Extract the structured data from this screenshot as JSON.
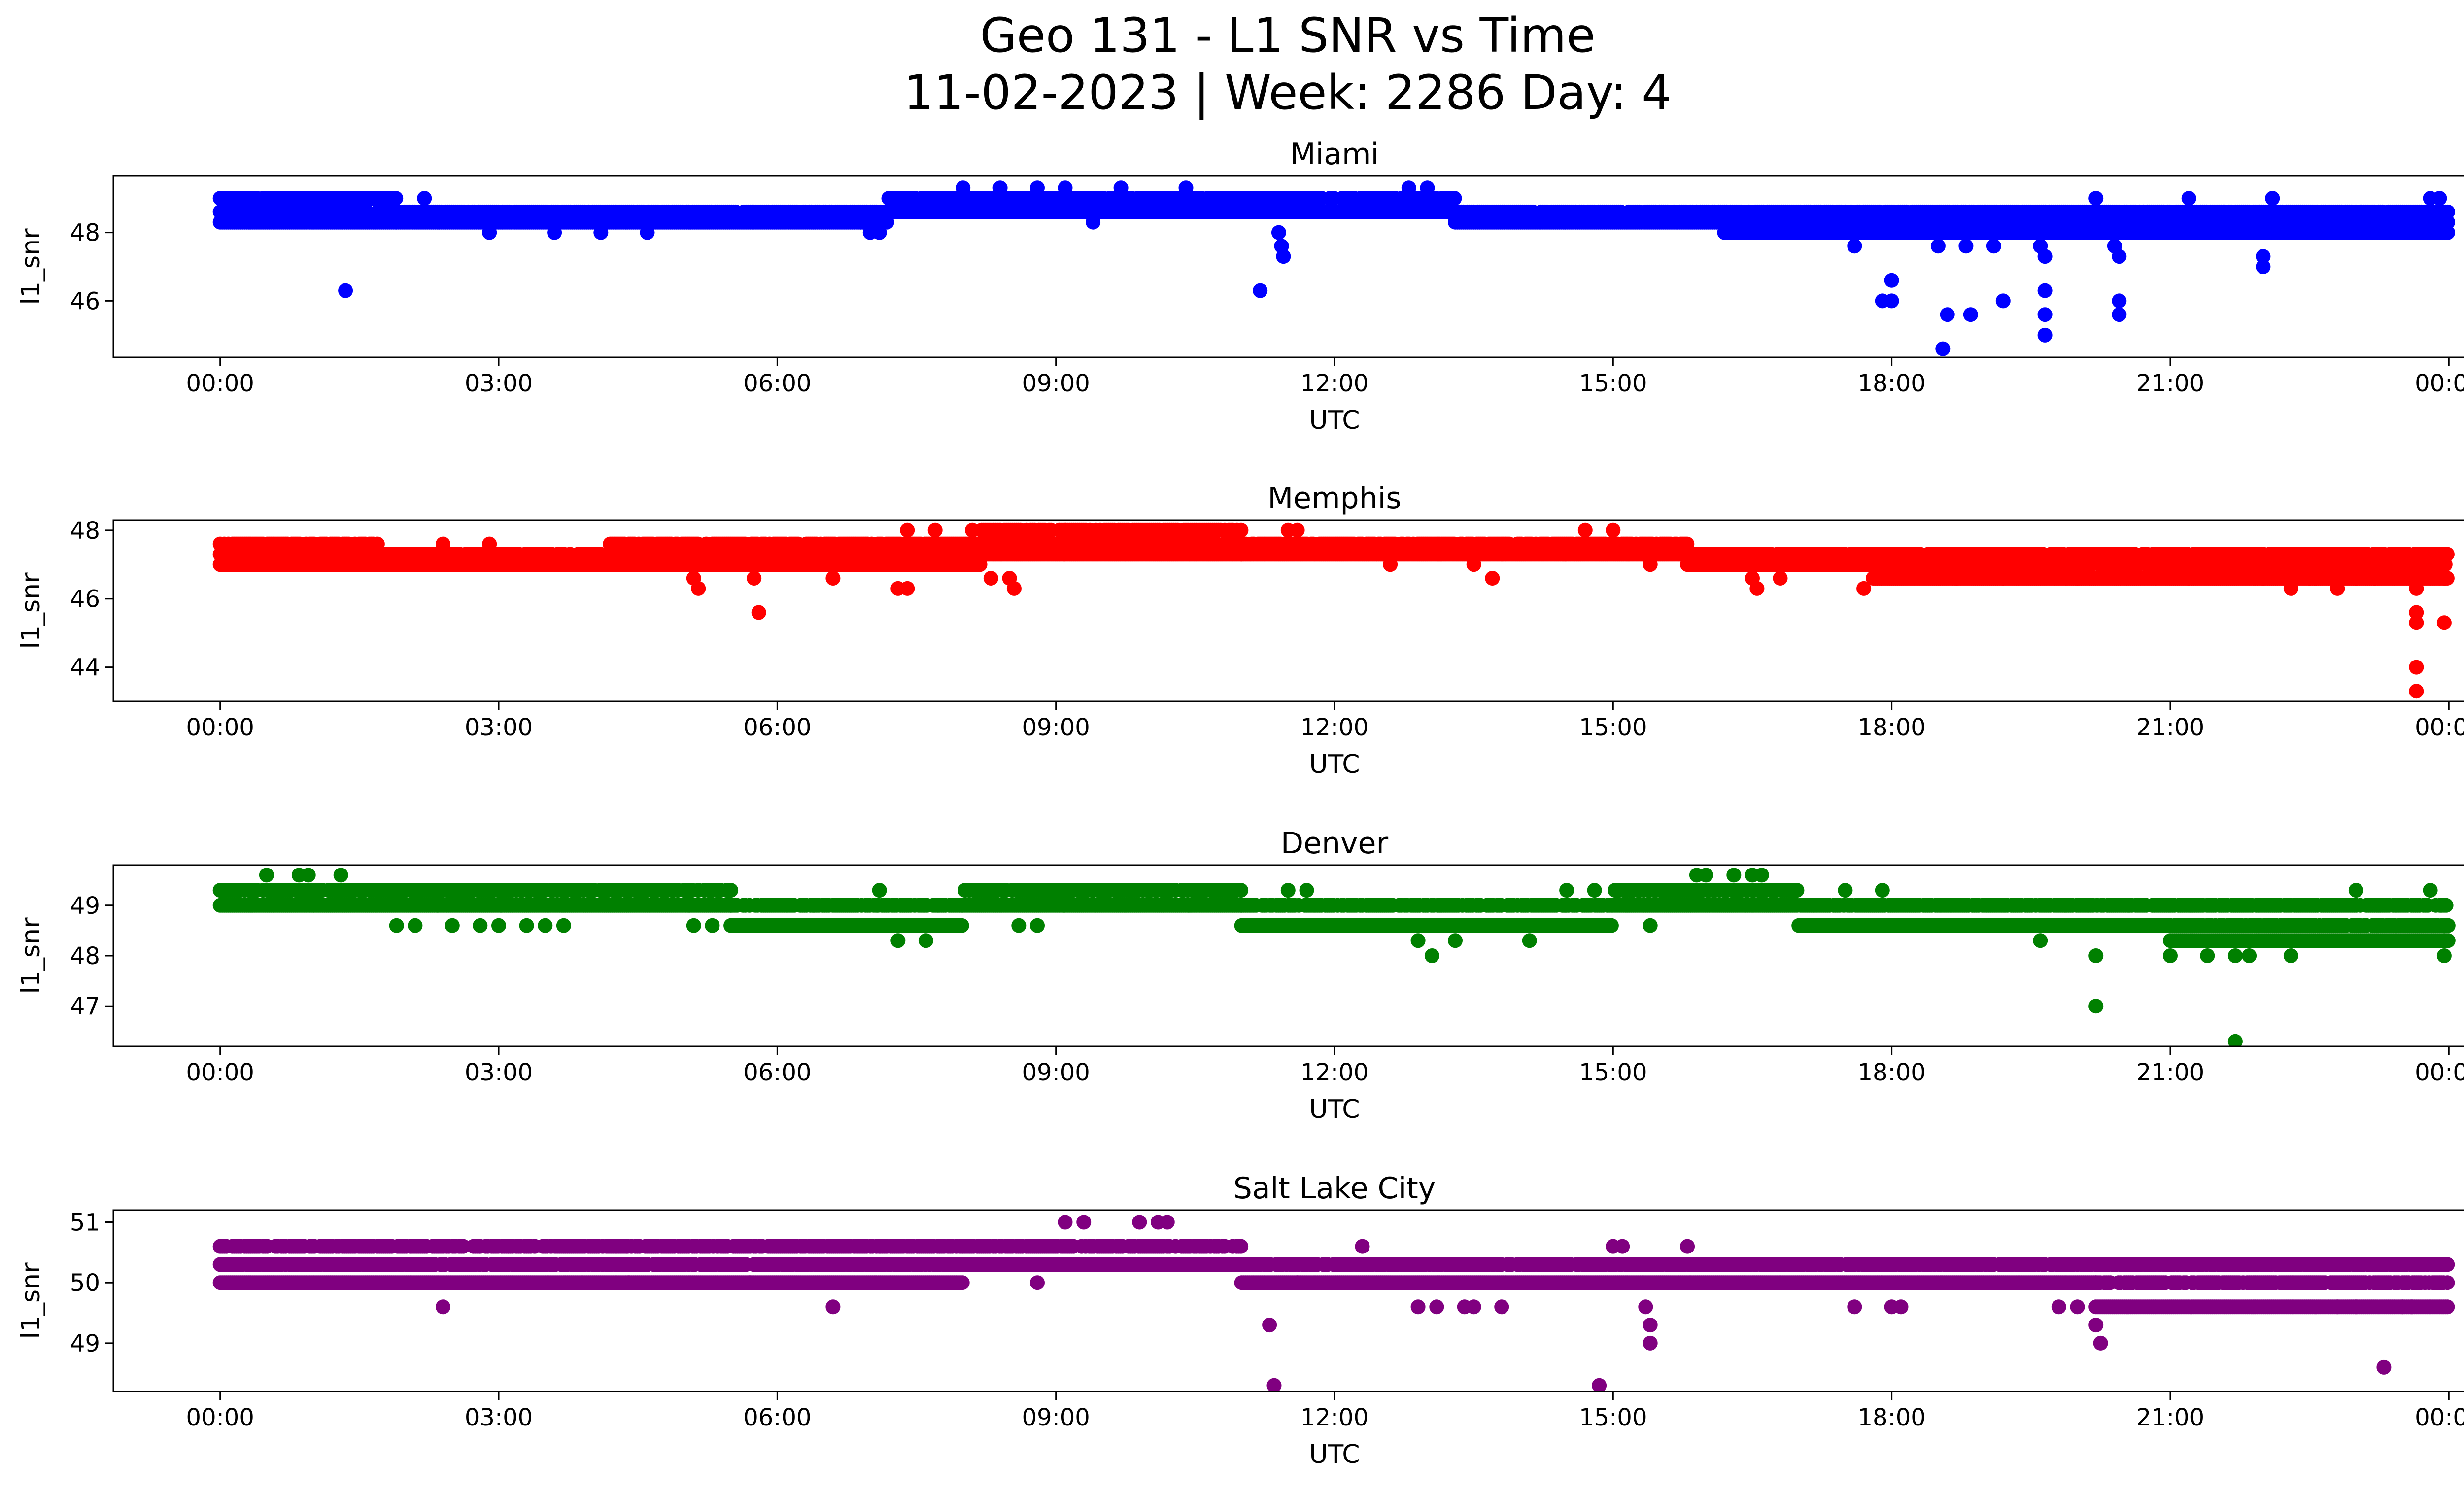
{
  "title_line1": "Geo 131 - L1 SNR vs Time",
  "title_line2": "11-02-2023 | Week: 2286 Day: 4",
  "chart_data": [
    {
      "type": "scatter",
      "title": "Miami",
      "xlabel": "UTC",
      "ylabel": "l1_snr",
      "color": "#0000ff",
      "x_ticks": [
        "00:00",
        "03:00",
        "06:00",
        "09:00",
        "12:00",
        "15:00",
        "18:00",
        "21:00",
        "00:00"
      ],
      "xlim_hours": [
        -1.15,
        25.15
      ],
      "y_ticks": [
        46,
        48
      ],
      "ylim": [
        44.35,
        49.65
      ],
      "base_levels": [
        {
          "from": 0.0,
          "to": 1.9,
          "levels": [
            48.3,
            48.6,
            49.0
          ]
        },
        {
          "from": 1.9,
          "to": 7.2,
          "levels": [
            48.3,
            48.6
          ]
        },
        {
          "from": 7.2,
          "to": 11.4,
          "levels": [
            48.6,
            49.0
          ]
        },
        {
          "from": 11.4,
          "to": 13.3,
          "levels": [
            48.6,
            49.0
          ]
        },
        {
          "from": 13.3,
          "to": 16.2,
          "levels": [
            48.3,
            48.6
          ]
        },
        {
          "from": 16.2,
          "to": 24.0,
          "levels": [
            48.0,
            48.3,
            48.6
          ]
        }
      ],
      "points": [
        {
          "x": 1.35,
          "y": 46.3
        },
        {
          "x": 2.2,
          "y": 49.0
        },
        {
          "x": 2.9,
          "y": 48.0
        },
        {
          "x": 3.6,
          "y": 48.0
        },
        {
          "x": 4.1,
          "y": 48.0
        },
        {
          "x": 4.6,
          "y": 48.0
        },
        {
          "x": 6.9,
          "y": 48.3
        },
        {
          "x": 7.0,
          "y": 48.0
        },
        {
          "x": 7.1,
          "y": 48.0
        },
        {
          "x": 8.0,
          "y": 49.3
        },
        {
          "x": 8.4,
          "y": 49.3
        },
        {
          "x": 8.8,
          "y": 49.3
        },
        {
          "x": 9.1,
          "y": 49.3
        },
        {
          "x": 9.4,
          "y": 48.3
        },
        {
          "x": 9.7,
          "y": 49.3
        },
        {
          "x": 10.4,
          "y": 49.3
        },
        {
          "x": 11.2,
          "y": 46.3
        },
        {
          "x": 11.4,
          "y": 48.0
        },
        {
          "x": 11.43,
          "y": 47.6
        },
        {
          "x": 11.45,
          "y": 47.3
        },
        {
          "x": 12.8,
          "y": 49.3
        },
        {
          "x": 13.0,
          "y": 49.3
        },
        {
          "x": 17.6,
          "y": 47.6
        },
        {
          "x": 17.9,
          "y": 46.0
        },
        {
          "x": 18.0,
          "y": 46.0
        },
        {
          "x": 18.0,
          "y": 46.6
        },
        {
          "x": 18.5,
          "y": 47.6
        },
        {
          "x": 18.55,
          "y": 44.6
        },
        {
          "x": 18.6,
          "y": 45.6
        },
        {
          "x": 18.8,
          "y": 47.6
        },
        {
          "x": 18.85,
          "y": 45.6
        },
        {
          "x": 19.1,
          "y": 47.6
        },
        {
          "x": 19.2,
          "y": 46.0
        },
        {
          "x": 19.6,
          "y": 47.6
        },
        {
          "x": 19.65,
          "y": 47.3
        },
        {
          "x": 19.65,
          "y": 46.3
        },
        {
          "x": 19.65,
          "y": 45.6
        },
        {
          "x": 19.65,
          "y": 45.0
        },
        {
          "x": 20.2,
          "y": 49.0
        },
        {
          "x": 20.4,
          "y": 47.6
        },
        {
          "x": 20.45,
          "y": 47.3
        },
        {
          "x": 20.45,
          "y": 46.0
        },
        {
          "x": 20.45,
          "y": 45.6
        },
        {
          "x": 21.2,
          "y": 49.0
        },
        {
          "x": 22.0,
          "y": 47.3
        },
        {
          "x": 22.0,
          "y": 47.0
        },
        {
          "x": 22.1,
          "y": 49.0
        },
        {
          "x": 23.8,
          "y": 49.0
        },
        {
          "x": 23.9,
          "y": 49.0
        }
      ]
    },
    {
      "type": "scatter",
      "title": "Memphis",
      "xlabel": "UTC",
      "ylabel": "l1_snr",
      "color": "#ff0000",
      "x_ticks": [
        "00:00",
        "03:00",
        "06:00",
        "09:00",
        "12:00",
        "15:00",
        "18:00",
        "21:00",
        "00:00"
      ],
      "xlim_hours": [
        -1.15,
        25.15
      ],
      "y_ticks": [
        44,
        46,
        48
      ],
      "ylim": [
        43.0,
        48.3
      ],
      "base_levels": [
        {
          "from": 0.0,
          "to": 1.7,
          "levels": [
            47.0,
            47.3,
            47.6
          ]
        },
        {
          "from": 1.7,
          "to": 4.2,
          "levels": [
            47.0,
            47.3
          ]
        },
        {
          "from": 4.2,
          "to": 8.2,
          "levels": [
            47.0,
            47.3,
            47.6
          ]
        },
        {
          "from": 8.2,
          "to": 11.0,
          "levels": [
            47.3,
            47.6,
            48.0
          ]
        },
        {
          "from": 11.0,
          "to": 15.8,
          "levels": [
            47.3,
            47.6
          ]
        },
        {
          "from": 15.8,
          "to": 17.8,
          "levels": [
            47.0,
            47.3
          ]
        },
        {
          "from": 17.8,
          "to": 24.0,
          "levels": [
            46.6,
            47.0,
            47.3
          ]
        }
      ],
      "points": [
        {
          "x": 0.3,
          "y": 47.0
        },
        {
          "x": 2.4,
          "y": 47.6
        },
        {
          "x": 2.9,
          "y": 47.6
        },
        {
          "x": 4.8,
          "y": 47.0
        },
        {
          "x": 5.1,
          "y": 46.6
        },
        {
          "x": 5.15,
          "y": 46.3
        },
        {
          "x": 5.75,
          "y": 46.6
        },
        {
          "x": 5.8,
          "y": 45.6
        },
        {
          "x": 6.6,
          "y": 46.6
        },
        {
          "x": 7.3,
          "y": 46.3
        },
        {
          "x": 7.4,
          "y": 46.3
        },
        {
          "x": 7.4,
          "y": 48.0
        },
        {
          "x": 7.7,
          "y": 48.0
        },
        {
          "x": 8.1,
          "y": 48.0
        },
        {
          "x": 8.3,
          "y": 46.6
        },
        {
          "x": 8.5,
          "y": 46.6
        },
        {
          "x": 8.55,
          "y": 46.3
        },
        {
          "x": 9.1,
          "y": 48.0
        },
        {
          "x": 11.5,
          "y": 48.0
        },
        {
          "x": 11.6,
          "y": 48.0
        },
        {
          "x": 12.6,
          "y": 47.0
        },
        {
          "x": 13.5,
          "y": 47.0
        },
        {
          "x": 13.7,
          "y": 46.6
        },
        {
          "x": 14.7,
          "y": 48.0
        },
        {
          "x": 15.0,
          "y": 48.0
        },
        {
          "x": 15.4,
          "y": 47.0
        },
        {
          "x": 16.5,
          "y": 46.6
        },
        {
          "x": 16.55,
          "y": 46.3
        },
        {
          "x": 16.8,
          "y": 46.6
        },
        {
          "x": 17.7,
          "y": 46.3
        },
        {
          "x": 18.7,
          "y": 46.6
        },
        {
          "x": 20.0,
          "y": 46.6
        },
        {
          "x": 21.2,
          "y": 46.6
        },
        {
          "x": 22.0,
          "y": 46.6
        },
        {
          "x": 22.3,
          "y": 46.3
        },
        {
          "x": 22.5,
          "y": 46.6
        },
        {
          "x": 22.8,
          "y": 46.3
        },
        {
          "x": 23.0,
          "y": 46.6
        },
        {
          "x": 23.2,
          "y": 46.6
        },
        {
          "x": 23.65,
          "y": 46.6
        },
        {
          "x": 23.65,
          "y": 46.3
        },
        {
          "x": 23.65,
          "y": 45.6
        },
        {
          "x": 23.65,
          "y": 45.3
        },
        {
          "x": 23.65,
          "y": 44.0
        },
        {
          "x": 23.65,
          "y": 43.3
        },
        {
          "x": 23.95,
          "y": 45.3
        },
        {
          "x": 23.95,
          "y": 46.6
        }
      ]
    },
    {
      "type": "scatter",
      "title": "Denver",
      "xlabel": "UTC",
      "ylabel": "l1_snr",
      "color": "#008000",
      "x_ticks": [
        "00:00",
        "03:00",
        "06:00",
        "09:00",
        "12:00",
        "15:00",
        "18:00",
        "21:00",
        "00:00"
      ],
      "xlim_hours": [
        -1.15,
        25.15
      ],
      "y_ticks": [
        47,
        48,
        49
      ],
      "ylim": [
        46.2,
        49.8
      ],
      "base_levels": [
        {
          "from": 0.0,
          "to": 5.5,
          "levels": [
            49.0,
            49.3
          ]
        },
        {
          "from": 5.5,
          "to": 8.0,
          "levels": [
            48.6,
            49.0
          ]
        },
        {
          "from": 8.0,
          "to": 11.0,
          "levels": [
            49.0,
            49.3
          ]
        },
        {
          "from": 11.0,
          "to": 15.0,
          "levels": [
            48.6,
            49.0
          ]
        },
        {
          "from": 15.0,
          "to": 17.0,
          "levels": [
            49.0,
            49.3
          ]
        },
        {
          "from": 17.0,
          "to": 21.0,
          "levels": [
            48.6,
            49.0
          ]
        },
        {
          "from": 21.0,
          "to": 24.0,
          "levels": [
            48.3,
            48.6,
            49.0
          ]
        }
      ],
      "points": [
        {
          "x": 0.5,
          "y": 49.6
        },
        {
          "x": 0.85,
          "y": 49.6
        },
        {
          "x": 0.95,
          "y": 49.6
        },
        {
          "x": 1.3,
          "y": 49.6
        },
        {
          "x": 1.9,
          "y": 48.6
        },
        {
          "x": 2.1,
          "y": 48.6
        },
        {
          "x": 2.5,
          "y": 48.6
        },
        {
          "x": 2.8,
          "y": 48.6
        },
        {
          "x": 3.0,
          "y": 48.6
        },
        {
          "x": 3.3,
          "y": 48.6
        },
        {
          "x": 3.5,
          "y": 48.6
        },
        {
          "x": 3.7,
          "y": 48.6
        },
        {
          "x": 5.1,
          "y": 48.6
        },
        {
          "x": 5.3,
          "y": 48.6
        },
        {
          "x": 7.1,
          "y": 49.3
        },
        {
          "x": 7.3,
          "y": 48.3
        },
        {
          "x": 7.6,
          "y": 48.3
        },
        {
          "x": 8.6,
          "y": 48.6
        },
        {
          "x": 8.8,
          "y": 48.6
        },
        {
          "x": 11.5,
          "y": 49.3
        },
        {
          "x": 11.7,
          "y": 49.3
        },
        {
          "x": 12.9,
          "y": 48.3
        },
        {
          "x": 13.05,
          "y": 48.0
        },
        {
          "x": 13.3,
          "y": 48.3
        },
        {
          "x": 14.1,
          "y": 48.3
        },
        {
          "x": 14.5,
          "y": 49.3
        },
        {
          "x": 14.8,
          "y": 49.3
        },
        {
          "x": 15.4,
          "y": 48.6
        },
        {
          "x": 15.9,
          "y": 49.6
        },
        {
          "x": 16.0,
          "y": 49.6
        },
        {
          "x": 16.3,
          "y": 49.6
        },
        {
          "x": 16.5,
          "y": 49.6
        },
        {
          "x": 16.6,
          "y": 49.6
        },
        {
          "x": 17.1,
          "y": 48.6
        },
        {
          "x": 17.5,
          "y": 49.3
        },
        {
          "x": 17.9,
          "y": 49.3
        },
        {
          "x": 19.1,
          "y": 48.6
        },
        {
          "x": 19.6,
          "y": 48.3
        },
        {
          "x": 20.2,
          "y": 48.0
        },
        {
          "x": 20.2,
          "y": 47.0
        },
        {
          "x": 21.0,
          "y": 48.0
        },
        {
          "x": 21.4,
          "y": 48.0
        },
        {
          "x": 21.7,
          "y": 46.3
        },
        {
          "x": 21.7,
          "y": 48.0
        },
        {
          "x": 21.85,
          "y": 48.0
        },
        {
          "x": 22.3,
          "y": 48.0
        },
        {
          "x": 23.0,
          "y": 49.3
        },
        {
          "x": 23.8,
          "y": 49.3
        },
        {
          "x": 23.95,
          "y": 48.0
        },
        {
          "x": 23.95,
          "y": 48.3
        }
      ]
    },
    {
      "type": "scatter",
      "title": "Salt Lake City",
      "xlabel": "UTC",
      "ylabel": "l1_snr",
      "color": "#800080",
      "x_ticks": [
        "00:00",
        "03:00",
        "06:00",
        "09:00",
        "12:00",
        "15:00",
        "18:00",
        "21:00",
        "00:00"
      ],
      "xlim_hours": [
        -1.15,
        25.15
      ],
      "y_ticks": [
        49,
        50,
        51
      ],
      "ylim": [
        48.2,
        51.2
      ],
      "base_levels": [
        {
          "from": 0.0,
          "to": 3.9,
          "levels": [
            50.0,
            50.3,
            50.6
          ]
        },
        {
          "from": 3.9,
          "to": 8.0,
          "levels": [
            50.0,
            50.3,
            50.6
          ]
        },
        {
          "from": 8.0,
          "to": 11.0,
          "levels": [
            50.3,
            50.6
          ]
        },
        {
          "from": 11.0,
          "to": 20.2,
          "levels": [
            50.0,
            50.3
          ]
        },
        {
          "from": 20.2,
          "to": 24.0,
          "levels": [
            49.6,
            50.0,
            50.3
          ]
        }
      ],
      "points": [
        {
          "x": 2.4,
          "y": 49.6
        },
        {
          "x": 2.8,
          "y": 50.6
        },
        {
          "x": 3.1,
          "y": 50.6
        },
        {
          "x": 4.4,
          "y": 50.0
        },
        {
          "x": 5.7,
          "y": 50.0
        },
        {
          "x": 6.6,
          "y": 49.6
        },
        {
          "x": 7.1,
          "y": 50.6
        },
        {
          "x": 8.8,
          "y": 50.0
        },
        {
          "x": 9.1,
          "y": 51.0
        },
        {
          "x": 9.3,
          "y": 51.0
        },
        {
          "x": 9.9,
          "y": 51.0
        },
        {
          "x": 10.1,
          "y": 51.0
        },
        {
          "x": 10.2,
          "y": 51.0
        },
        {
          "x": 11.3,
          "y": 49.3
        },
        {
          "x": 11.35,
          "y": 48.3
        },
        {
          "x": 11.6,
          "y": 50.0
        },
        {
          "x": 12.3,
          "y": 50.6
        },
        {
          "x": 12.9,
          "y": 49.6
        },
        {
          "x": 13.1,
          "y": 49.6
        },
        {
          "x": 13.4,
          "y": 49.6
        },
        {
          "x": 13.5,
          "y": 49.6
        },
        {
          "x": 13.8,
          "y": 49.6
        },
        {
          "x": 14.85,
          "y": 48.3
        },
        {
          "x": 15.0,
          "y": 50.6
        },
        {
          "x": 15.1,
          "y": 50.6
        },
        {
          "x": 15.35,
          "y": 49.6
        },
        {
          "x": 15.4,
          "y": 49.3
        },
        {
          "x": 15.4,
          "y": 49.0
        },
        {
          "x": 15.8,
          "y": 50.6
        },
        {
          "x": 17.6,
          "y": 49.6
        },
        {
          "x": 18.0,
          "y": 49.6
        },
        {
          "x": 18.1,
          "y": 49.6
        },
        {
          "x": 19.8,
          "y": 49.6
        },
        {
          "x": 20.0,
          "y": 49.6
        },
        {
          "x": 20.2,
          "y": 49.3
        },
        {
          "x": 20.25,
          "y": 49.0
        },
        {
          "x": 21.0,
          "y": 50.3
        },
        {
          "x": 22.8,
          "y": 49.6
        },
        {
          "x": 23.0,
          "y": 49.6
        },
        {
          "x": 23.3,
          "y": 48.6
        },
        {
          "x": 23.5,
          "y": 49.6
        },
        {
          "x": 23.6,
          "y": 49.6
        }
      ]
    }
  ]
}
